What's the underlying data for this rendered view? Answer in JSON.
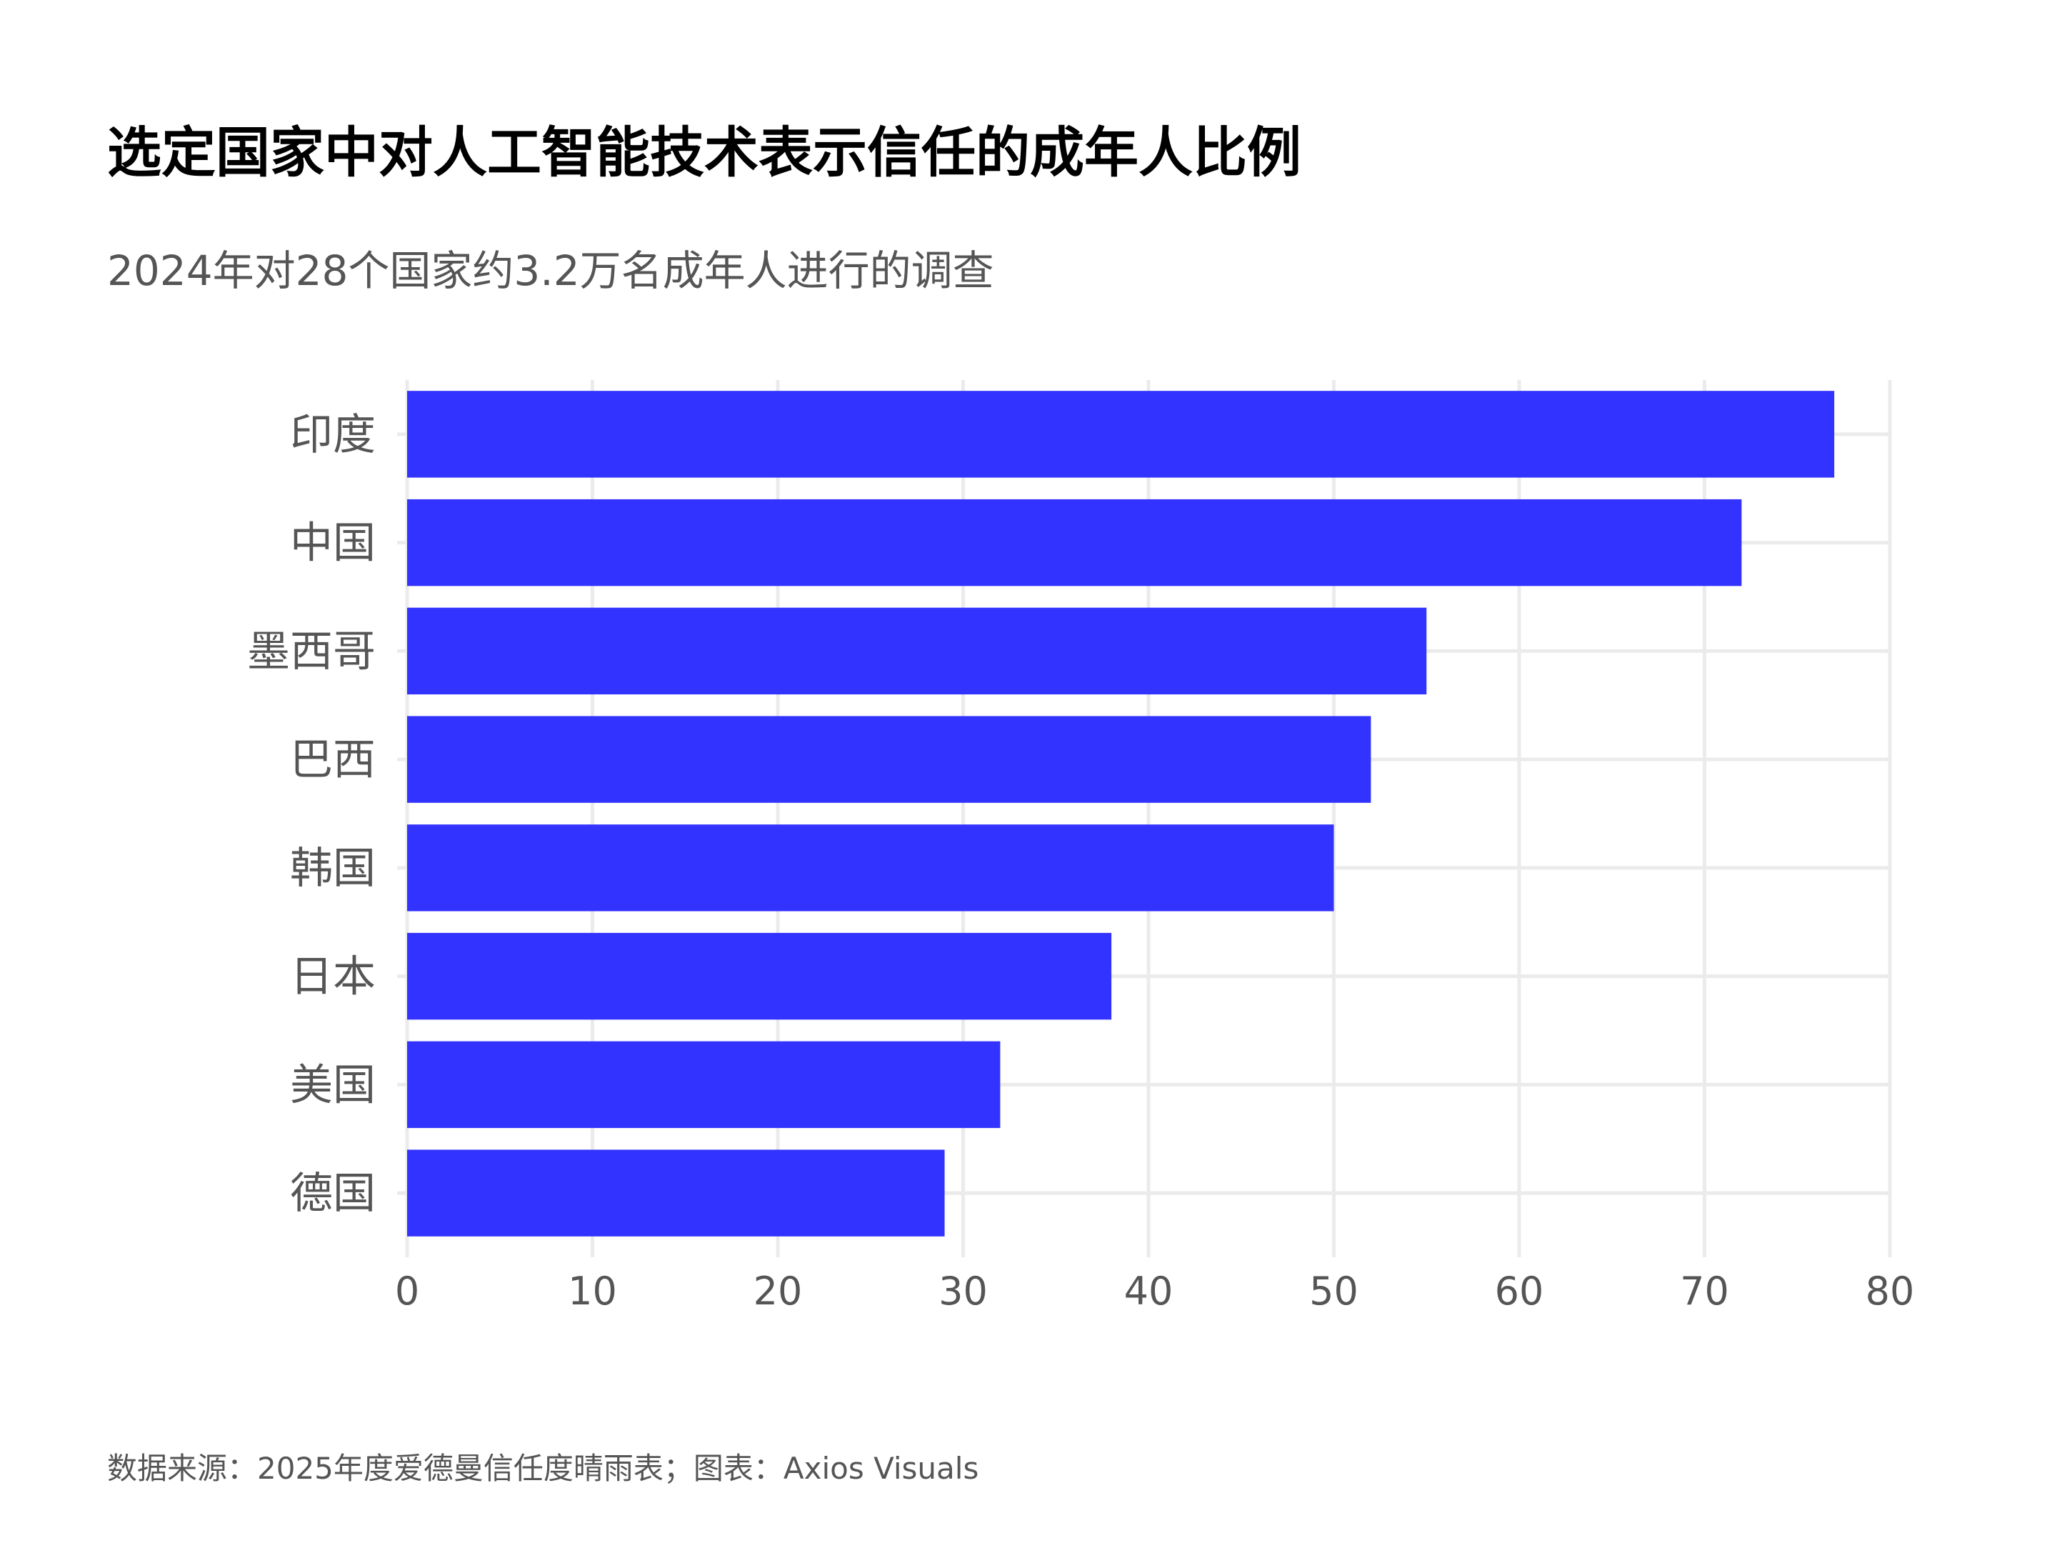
{
  "title": "选定国家中对人工智能技术表示信任的成年人比例",
  "subtitle": "2024年对28个国家约3.2万名成年人进行的调查",
  "source": "数据来源：2025年度爱德曼信任度晴雨表；图表：Axios Visuals",
  "colors": {
    "bar": "#3333ff",
    "grid": "#ebebeb",
    "text": "#555555"
  },
  "chart_data": {
    "type": "bar",
    "orientation": "horizontal",
    "categories": [
      "印度",
      "中国",
      "墨西哥",
      "巴西",
      "韩国",
      "日本",
      "美国",
      "德国"
    ],
    "values": [
      77,
      72,
      55,
      52,
      50,
      38,
      32,
      29
    ],
    "xlim": [
      0,
      80
    ],
    "xticks": [
      0,
      10,
      20,
      30,
      40,
      50,
      60,
      70,
      80
    ],
    "xtick_labels": [
      "0",
      "10",
      "20",
      "30",
      "40",
      "50",
      "60",
      "70",
      "80"
    ],
    "grid": true,
    "legend": "none"
  }
}
